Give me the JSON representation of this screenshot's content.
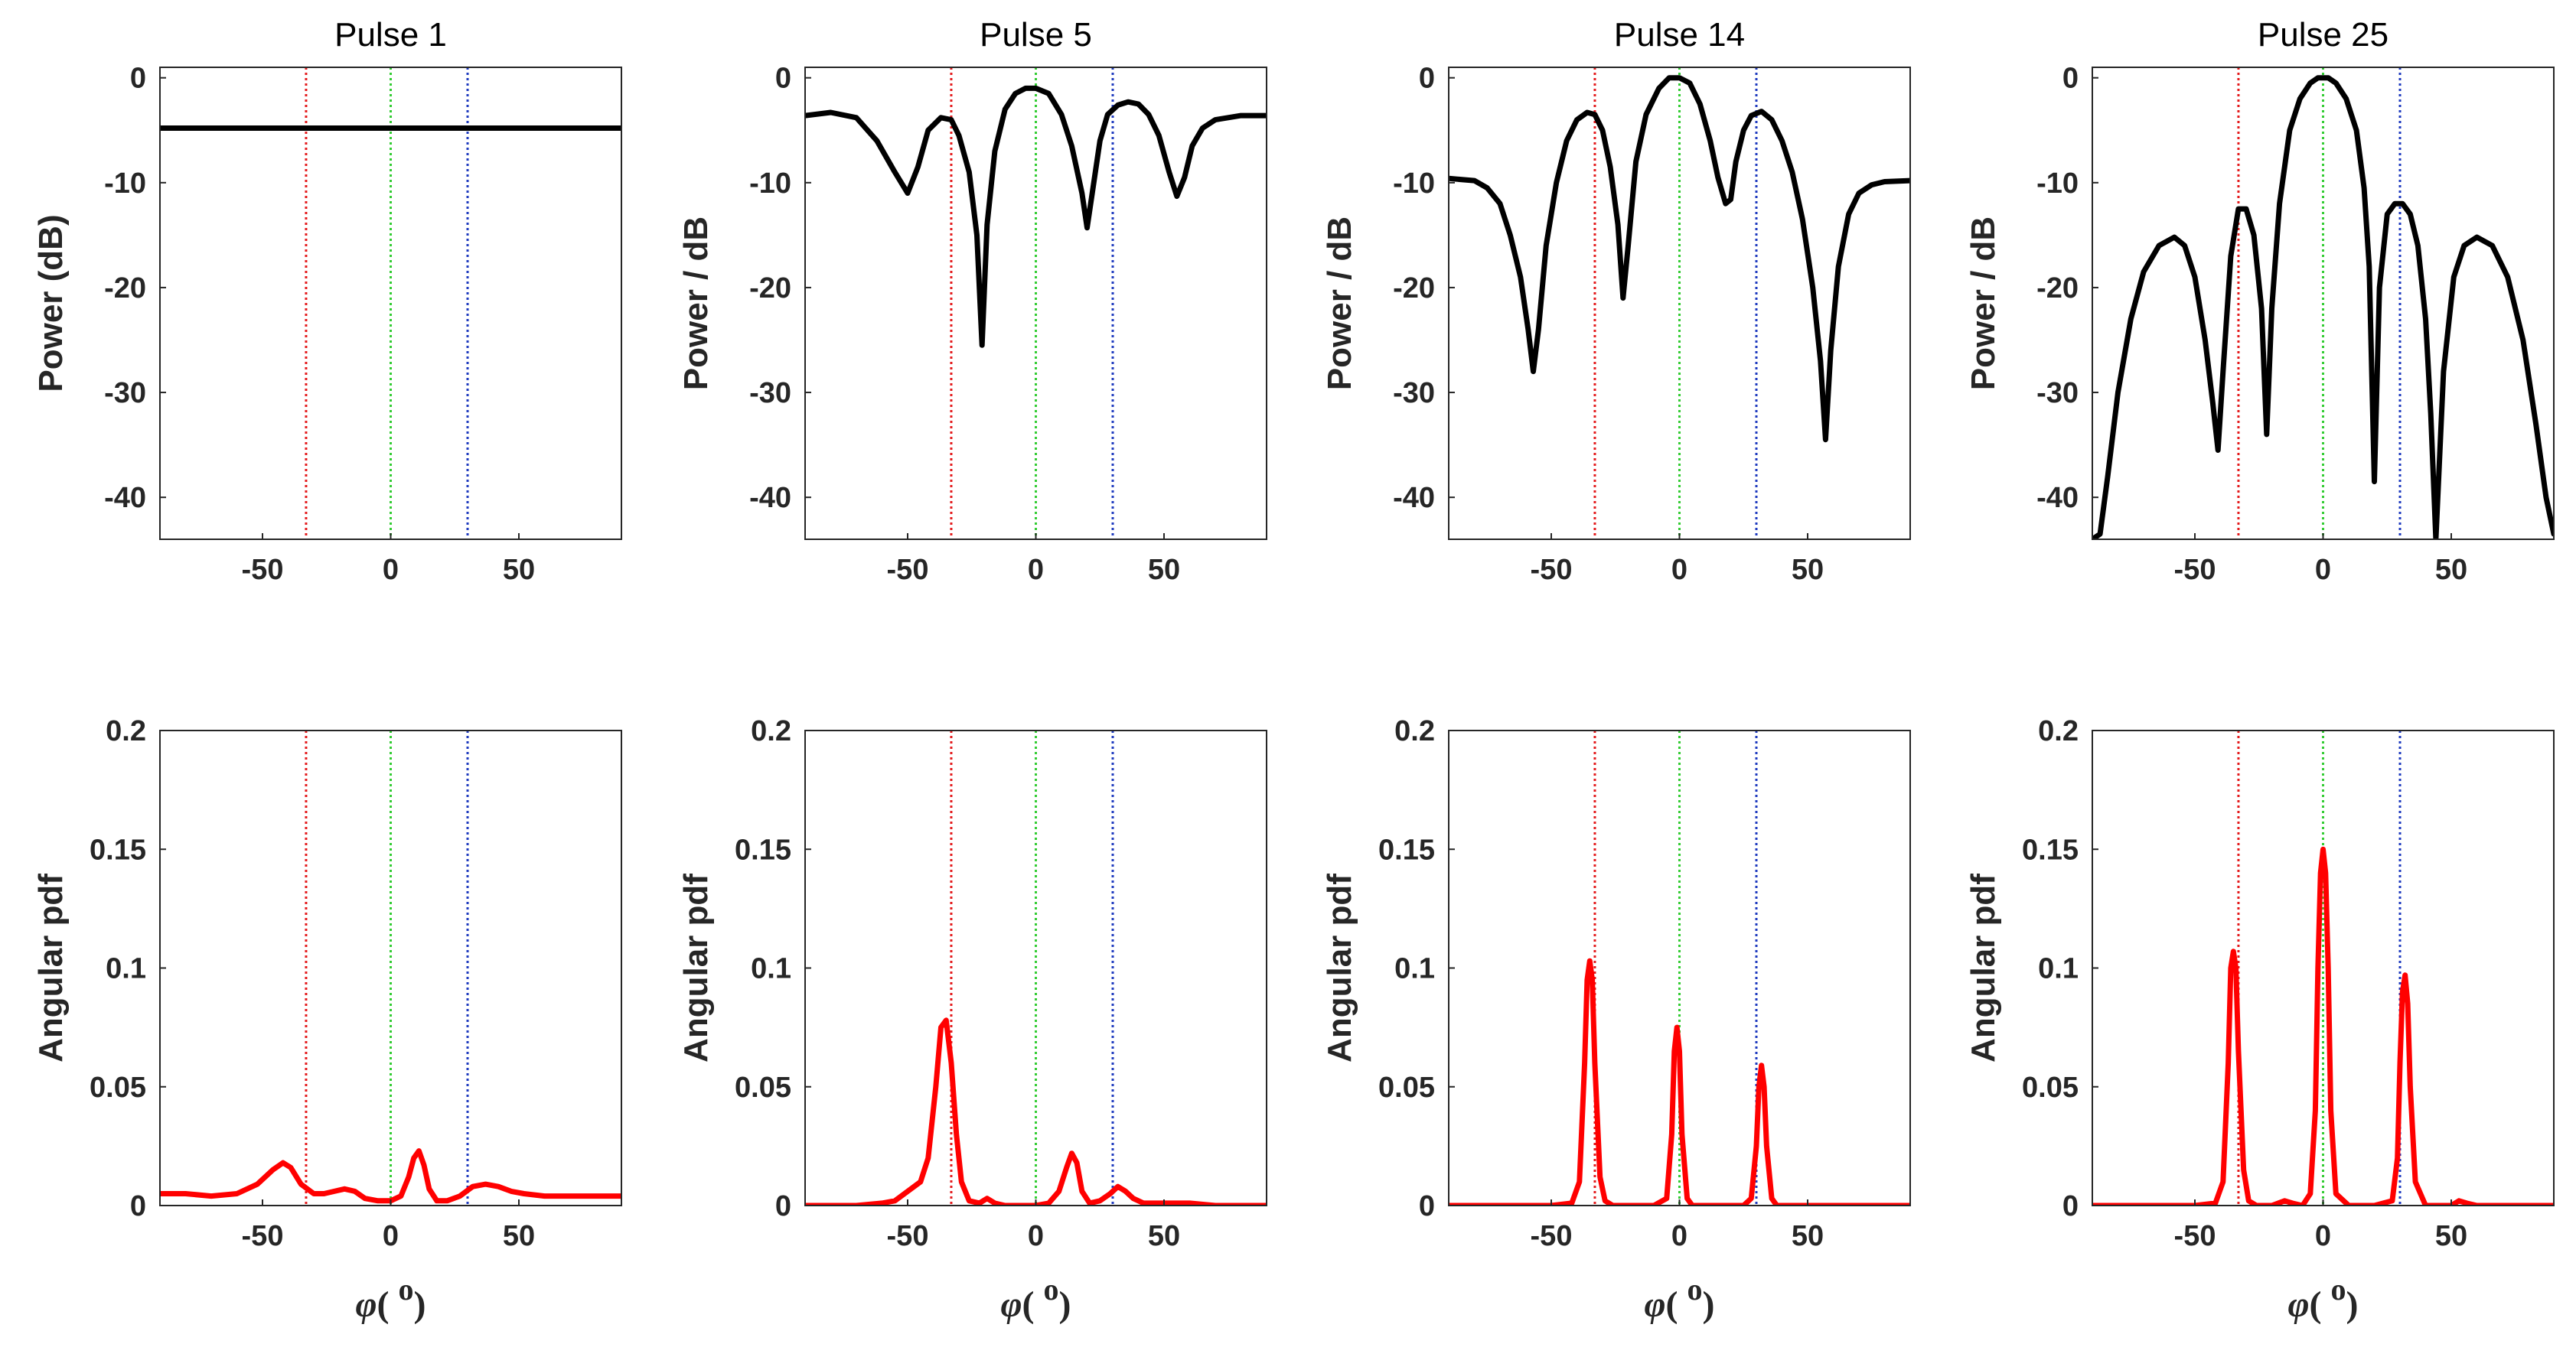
{
  "chart_data": [
    {
      "type": "line",
      "title": "Pulse 1",
      "xlabel": "",
      "ylabel": "Power (dB)",
      "xlim": [
        -90,
        90
      ],
      "ylim": [
        -44,
        1
      ],
      "xticks": [
        -50,
        0,
        50
      ],
      "yticks": [
        -40,
        -30,
        -20,
        -10,
        0
      ],
      "xtick_labels": [
        "-50",
        "0",
        "50"
      ],
      "ytick_labels": [
        "-40",
        "-30",
        "-20",
        "-10",
        "0"
      ],
      "line_color": "#000000",
      "markers": [
        {
          "x": -33,
          "color": "#e41a1c"
        },
        {
          "x": 0,
          "color": "#33cc33"
        },
        {
          "x": 30,
          "color": "#1f3bbf"
        }
      ],
      "series": [
        {
          "name": "Pulse 1 power",
          "x": [
            -90,
            -45,
            0,
            45,
            90
          ],
          "y": [
            -4.8,
            -4.8,
            -4.8,
            -4.8,
            -4.8
          ]
        }
      ]
    },
    {
      "type": "line",
      "title": "Pulse 5",
      "xlabel": "",
      "ylabel": "Power / dB",
      "xlim": [
        -90,
        90
      ],
      "ylim": [
        -44,
        1
      ],
      "xticks": [
        -50,
        0,
        50
      ],
      "yticks": [
        -40,
        -30,
        -20,
        -10,
        0
      ],
      "xtick_labels": [
        "-50",
        "0",
        "50"
      ],
      "ytick_labels": [
        "-40",
        "-30",
        "-20",
        "-10",
        "0"
      ],
      "line_color": "#000000",
      "markers": [
        {
          "x": -33,
          "color": "#e41a1c"
        },
        {
          "x": 0,
          "color": "#33cc33"
        },
        {
          "x": 30,
          "color": "#1f3bbf"
        }
      ],
      "series": [
        {
          "name": "Pulse 5 power",
          "x": [
            -90,
            -80,
            -70,
            -62,
            -55,
            -50,
            -46,
            -42,
            -37,
            -33,
            -30,
            -26,
            -23,
            -21,
            -19,
            -16,
            -12,
            -8,
            -4,
            0,
            5,
            10,
            14,
            18,
            20,
            22,
            25,
            28,
            32,
            36,
            40,
            44,
            48,
            52,
            55,
            58,
            61,
            65,
            70,
            80,
            90
          ],
          "y": [
            -3.6,
            -3.3,
            -3.8,
            -6,
            -9,
            -11,
            -8.5,
            -5,
            -3.8,
            -4,
            -5.5,
            -9,
            -15,
            -25.5,
            -14,
            -7,
            -3,
            -1.5,
            -1,
            -1,
            -1.5,
            -3.5,
            -6.5,
            -11,
            -14.3,
            -11,
            -6,
            -3.5,
            -2.6,
            -2.3,
            -2.5,
            -3.5,
            -5.5,
            -9,
            -11.3,
            -9.5,
            -6.5,
            -4.8,
            -4,
            -3.6,
            -3.6
          ]
        }
      ]
    },
    {
      "type": "line",
      "title": "Pulse 14",
      "xlabel": "",
      "ylabel": "Power / dB",
      "xlim": [
        -90,
        90
      ],
      "ylim": [
        -44,
        1
      ],
      "xticks": [
        -50,
        0,
        50
      ],
      "yticks": [
        -40,
        -30,
        -20,
        -10,
        0
      ],
      "xtick_labels": [
        "-50",
        "0",
        "50"
      ],
      "ytick_labels": [
        "-40",
        "-30",
        "-20",
        "-10",
        "0"
      ],
      "line_color": "#000000",
      "markers": [
        {
          "x": -33,
          "color": "#e41a1c"
        },
        {
          "x": 0,
          "color": "#33cc33"
        },
        {
          "x": 30,
          "color": "#1f3bbf"
        }
      ],
      "series": [
        {
          "name": "Pulse 14 power",
          "x": [
            -90,
            -80,
            -75,
            -70,
            -66,
            -62,
            -59,
            -57,
            -55,
            -52,
            -48,
            -44,
            -40,
            -36,
            -33,
            -30,
            -27,
            -24,
            -22,
            -20,
            -17,
            -13,
            -8,
            -4,
            0,
            4,
            8,
            12,
            15,
            18,
            20,
            22,
            25,
            28,
            32,
            36,
            40,
            44,
            48,
            52,
            55,
            57,
            59,
            62,
            66,
            70,
            75,
            80,
            90
          ],
          "y": [
            -9.6,
            -9.8,
            -10.5,
            -12,
            -15,
            -19,
            -24,
            -28,
            -24,
            -16,
            -10,
            -6,
            -4,
            -3.3,
            -3.5,
            -5,
            -8.5,
            -14,
            -21,
            -16,
            -8,
            -3.5,
            -1,
            0,
            0,
            -0.5,
            -2.5,
            -6,
            -9.5,
            -12,
            -11.6,
            -8,
            -5,
            -3.6,
            -3.2,
            -4,
            -6,
            -9,
            -13.5,
            -20,
            -27,
            -34.5,
            -26,
            -18,
            -13,
            -11,
            -10.2,
            -9.9,
            -9.8
          ]
        }
      ]
    },
    {
      "type": "line",
      "title": "Pulse 25",
      "xlabel": "",
      "ylabel": "Power / dB",
      "xlim": [
        -90,
        90
      ],
      "ylim": [
        -44,
        1
      ],
      "xticks": [
        -50,
        0,
        50
      ],
      "yticks": [
        -40,
        -30,
        -20,
        -10,
        0
      ],
      "xtick_labels": [
        "-50",
        "0",
        "50"
      ],
      "ytick_labels": [
        "-40",
        "-30",
        "-20",
        "-10",
        "0"
      ],
      "line_color": "#000000",
      "markers": [
        {
          "x": -33,
          "color": "#e41a1c"
        },
        {
          "x": 0,
          "color": "#33cc33"
        },
        {
          "x": 30,
          "color": "#1f3bbf"
        }
      ],
      "series": [
        {
          "name": "Pulse 25 power",
          "x": [
            -90,
            -87,
            -84,
            -80,
            -75,
            -70,
            -64,
            -58,
            -54,
            -50,
            -46,
            -43,
            -41,
            -39,
            -36,
            -33,
            -30,
            -27,
            -24,
            -22,
            -20,
            -17,
            -13,
            -9,
            -5,
            -2,
            0,
            2,
            5,
            9,
            13,
            16,
            18,
            20,
            22,
            25,
            28,
            31,
            34,
            37,
            40,
            42,
            44,
            47,
            51,
            55,
            60,
            66,
            72,
            78,
            83,
            87,
            90
          ],
          "y": [
            -44,
            -43.5,
            -38,
            -30,
            -23,
            -18.5,
            -16,
            -15.2,
            -16,
            -19,
            -25,
            -31,
            -35.5,
            -28,
            -17,
            -12.5,
            -12.5,
            -15,
            -22,
            -34,
            -22,
            -12,
            -5,
            -2,
            -0.5,
            0,
            0,
            0,
            -0.5,
            -2,
            -5,
            -10.5,
            -18,
            -38.5,
            -20,
            -13,
            -12,
            -12,
            -13,
            -16,
            -23,
            -32,
            -44,
            -28,
            -19,
            -16,
            -15.2,
            -16,
            -19,
            -25,
            -33,
            -40,
            -43.5
          ]
        }
      ]
    },
    {
      "type": "line",
      "title": "",
      "xlabel": "φ( o)",
      "ylabel": "Angular pdf",
      "xlim": [
        -90,
        90
      ],
      "ylim": [
        0,
        0.2
      ],
      "xticks": [
        -50,
        0,
        50
      ],
      "yticks": [
        0,
        0.05,
        0.1,
        0.15,
        0.2
      ],
      "xtick_labels": [
        "-50",
        "0",
        "50"
      ],
      "ytick_labels": [
        "0",
        "0.05",
        "0.1",
        "0.15",
        "0.2"
      ],
      "line_color": "#ff0000",
      "markers": [
        {
          "x": -33,
          "color": "#e41a1c"
        },
        {
          "x": 0,
          "color": "#33cc33"
        },
        {
          "x": 30,
          "color": "#1f3bbf"
        }
      ],
      "series": [
        {
          "name": "Pulse 1 angular pdf",
          "x": [
            -90,
            -80,
            -70,
            -60,
            -52,
            -46,
            -42,
            -39,
            -35,
            -30,
            -26,
            -22,
            -18,
            -14,
            -10,
            -5,
            0,
            4,
            7,
            9,
            11,
            13,
            15,
            18,
            22,
            27,
            32,
            37,
            42,
            47,
            52,
            60,
            70,
            80,
            90
          ],
          "y": [
            0.005,
            0.005,
            0.004,
            0.005,
            0.009,
            0.015,
            0.018,
            0.016,
            0.009,
            0.005,
            0.005,
            0.006,
            0.007,
            0.006,
            0.003,
            0.002,
            0.002,
            0.004,
            0.012,
            0.02,
            0.023,
            0.017,
            0.007,
            0.002,
            0.002,
            0.004,
            0.008,
            0.009,
            0.008,
            0.006,
            0.005,
            0.004,
            0.004,
            0.004,
            0.004
          ]
        }
      ]
    },
    {
      "type": "line",
      "title": "",
      "xlabel": "φ( o)",
      "ylabel": "Angular pdf",
      "xlim": [
        -90,
        90
      ],
      "ylim": [
        0,
        0.2
      ],
      "xticks": [
        -50,
        0,
        50
      ],
      "yticks": [
        0,
        0.05,
        0.1,
        0.15,
        0.2
      ],
      "xtick_labels": [
        "-50",
        "0",
        "50"
      ],
      "ytick_labels": [
        "0",
        "0.05",
        "0.1",
        "0.15",
        "0.2"
      ],
      "line_color": "#ff0000",
      "markers": [
        {
          "x": -33,
          "color": "#e41a1c"
        },
        {
          "x": 0,
          "color": "#33cc33"
        },
        {
          "x": 30,
          "color": "#1f3bbf"
        }
      ],
      "series": [
        {
          "name": "Pulse 5 angular pdf",
          "x": [
            -90,
            -70,
            -60,
            -55,
            -50,
            -45,
            -42,
            -39,
            -37,
            -35,
            -33,
            -31,
            -29,
            -26,
            -22,
            -19,
            -16,
            -12,
            -5,
            0,
            5,
            9,
            12,
            14,
            16,
            18,
            21,
            25,
            29,
            32,
            35,
            38,
            42,
            50,
            60,
            70,
            80,
            90
          ],
          "y": [
            0,
            0,
            0.001,
            0.002,
            0.006,
            0.01,
            0.02,
            0.05,
            0.075,
            0.078,
            0.06,
            0.03,
            0.01,
            0.002,
            0.001,
            0.003,
            0.001,
            0,
            0,
            0,
            0.001,
            0.006,
            0.016,
            0.022,
            0.018,
            0.006,
            0.001,
            0.002,
            0.005,
            0.008,
            0.006,
            0.003,
            0.001,
            0.001,
            0.001,
            0,
            0,
            0
          ]
        }
      ]
    },
    {
      "type": "line",
      "title": "",
      "xlabel": "φ( o)",
      "ylabel": "Angular pdf",
      "xlim": [
        -90,
        90
      ],
      "ylim": [
        0,
        0.2
      ],
      "xticks": [
        -50,
        0,
        50
      ],
      "yticks": [
        0,
        0.05,
        0.1,
        0.15,
        0.2
      ],
      "xtick_labels": [
        "-50",
        "0",
        "50"
      ],
      "ytick_labels": [
        "0",
        "0.05",
        "0.1",
        "0.15",
        "0.2"
      ],
      "line_color": "#ff0000",
      "markers": [
        {
          "x": -33,
          "color": "#e41a1c"
        },
        {
          "x": 0,
          "color": "#33cc33"
        },
        {
          "x": 30,
          "color": "#1f3bbf"
        }
      ],
      "series": [
        {
          "name": "Pulse 14 angular pdf",
          "x": [
            -90,
            -50,
            -42,
            -39,
            -37,
            -36,
            -35,
            -34,
            -33,
            -31,
            -29,
            -26,
            -10,
            -5,
            -3,
            -2,
            -1,
            0,
            1,
            3,
            5,
            10,
            25,
            28,
            30,
            31,
            32,
            33,
            34,
            36,
            38,
            50,
            90
          ],
          "y": [
            0,
            0,
            0.001,
            0.01,
            0.06,
            0.095,
            0.103,
            0.095,
            0.06,
            0.012,
            0.002,
            0,
            0,
            0.003,
            0.03,
            0.065,
            0.075,
            0.065,
            0.03,
            0.003,
            0,
            0,
            0,
            0.003,
            0.025,
            0.05,
            0.059,
            0.05,
            0.025,
            0.003,
            0,
            0,
            0
          ]
        }
      ]
    },
    {
      "type": "line",
      "title": "",
      "xlabel": "φ( o)",
      "ylabel": "Angular pdf",
      "xlim": [
        -90,
        90
      ],
      "ylim": [
        0,
        0.2
      ],
      "xticks": [
        -50,
        0,
        50
      ],
      "yticks": [
        0,
        0.05,
        0.1,
        0.15,
        0.2
      ],
      "xtick_labels": [
        "-50",
        "0",
        "50"
      ],
      "ytick_labels": [
        "0",
        "0.05",
        "0.1",
        "0.15",
        "0.2"
      ],
      "line_color": "#ff0000",
      "markers": [
        {
          "x": -33,
          "color": "#e41a1c"
        },
        {
          "x": 0,
          "color": "#33cc33"
        },
        {
          "x": 30,
          "color": "#1f3bbf"
        }
      ],
      "series": [
        {
          "name": "Pulse 25 angular pdf",
          "x": [
            -90,
            -50,
            -42,
            -39,
            -37,
            -36,
            -35,
            -34,
            -33,
            -31,
            -29,
            -26,
            -20,
            -15,
            -12,
            -8,
            -5,
            -3,
            -2,
            -1,
            0,
            1,
            2,
            3,
            5,
            10,
            20,
            27,
            29,
            30,
            31,
            32,
            33,
            34,
            36,
            40,
            50,
            53,
            56,
            60,
            90
          ],
          "y": [
            0,
            0,
            0.001,
            0.01,
            0.06,
            0.1,
            0.107,
            0.1,
            0.065,
            0.015,
            0.002,
            0,
            0,
            0.002,
            0.001,
            0,
            0.005,
            0.04,
            0.1,
            0.14,
            0.15,
            0.14,
            0.1,
            0.04,
            0.005,
            0,
            0,
            0.002,
            0.02,
            0.06,
            0.09,
            0.097,
            0.085,
            0.05,
            0.01,
            0,
            0,
            0.002,
            0.001,
            0,
            0
          ]
        }
      ]
    }
  ]
}
